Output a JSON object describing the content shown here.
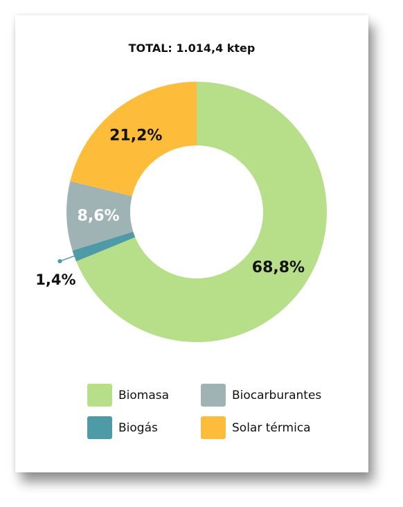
{
  "chart_data": {
    "type": "pie",
    "title": "TOTAL: 1.014,4 ktep",
    "slices": [
      {
        "name": "Biomasa",
        "value": 68.8,
        "label": "68,8%",
        "color": "#b7df8a",
        "label_color": "#111111"
      },
      {
        "name": "Biogás",
        "value": 1.4,
        "label": "1,4%",
        "color": "#4e9aa6",
        "label_color": "#111111"
      },
      {
        "name": "Biocarburantes",
        "value": 8.6,
        "label": "8,6%",
        "color": "#9fb3b4",
        "label_color": "#ffffff"
      },
      {
        "name": "Solar térmica",
        "value": 21.2,
        "label": "21,2%",
        "color": "#fdbd3a",
        "label_color": "#111111"
      }
    ],
    "legend": [
      "Biomasa",
      "Biocarburantes",
      "Biogás",
      "Solar térmica"
    ],
    "legend_placement": "bottom"
  }
}
